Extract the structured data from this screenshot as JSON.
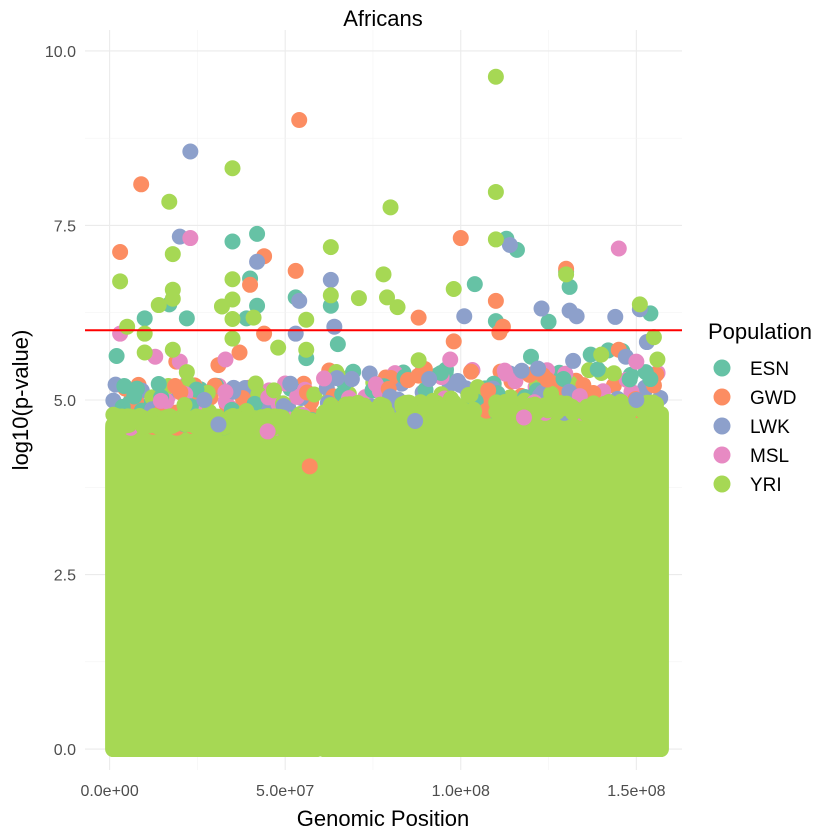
{
  "chart_data": {
    "type": "scatter",
    "title": "Africans",
    "xlabel": "Genomic Position",
    "ylabel": "log10(p-value)",
    "xlim": [
      -7000000,
      163000000
    ],
    "ylim": [
      -0.3,
      10.3
    ],
    "x_ticks": [
      0,
      50000000,
      100000000,
      150000000
    ],
    "x_tick_labels": [
      "0.0e+00",
      "5.0e+07",
      "1.0e+08",
      "1.5e+08"
    ],
    "y_ticks": [
      0,
      2.5,
      5,
      7.5,
      10
    ],
    "y_tick_labels": [
      "0.0",
      "2.5",
      "5.0",
      "7.5",
      "10.0"
    ],
    "grid": true,
    "threshold": {
      "y": 6,
      "color": "#ff0000"
    },
    "bulk_segments": [
      {
        "x_start": 1000000,
        "x_end": 59000000,
        "y_low": 0,
        "y_high": 4.6
      },
      {
        "x_start": 61000000,
        "x_end": 157000000,
        "y_low": 0,
        "y_high": 4.8
      }
    ],
    "legend": {
      "title": "Population",
      "position": "right",
      "entries": [
        "ESN",
        "GWD",
        "LWK",
        "MSL",
        "YRI"
      ]
    },
    "series": [
      {
        "name": "ESN",
        "color": "#66c2a5",
        "points": [
          {
            "x": 2000000,
            "y": 5.63
          },
          {
            "x": 4200000,
            "y": 5.2
          },
          {
            "x": 7000000,
            "y": 5.05
          },
          {
            "x": 10000000,
            "y": 6.17
          },
          {
            "x": 14000000,
            "y": 5.23
          },
          {
            "x": 17000000,
            "y": 6.37
          },
          {
            "x": 22000000,
            "y": 6.17
          },
          {
            "x": 35000000,
            "y": 7.27
          },
          {
            "x": 39000000,
            "y": 6.17
          },
          {
            "x": 40000000,
            "y": 6.74
          },
          {
            "x": 42000000,
            "y": 7.38
          },
          {
            "x": 42000000,
            "y": 6.35
          },
          {
            "x": 53000000,
            "y": 6.47
          },
          {
            "x": 56000000,
            "y": 5.6
          },
          {
            "x": 63000000,
            "y": 6.35
          },
          {
            "x": 65000000,
            "y": 5.8
          },
          {
            "x": 104000000,
            "y": 6.66
          },
          {
            "x": 110000000,
            "y": 6.13
          },
          {
            "x": 113000000,
            "y": 7.31
          },
          {
            "x": 116000000,
            "y": 7.15
          },
          {
            "x": 120000000,
            "y": 5.62
          },
          {
            "x": 125000000,
            "y": 6.12
          },
          {
            "x": 130000000,
            "y": 6.84
          },
          {
            "x": 131000000,
            "y": 6.62
          },
          {
            "x": 137000000,
            "y": 5.65
          },
          {
            "x": 142000000,
            "y": 5.71
          },
          {
            "x": 146000000,
            "y": 5.7
          },
          {
            "x": 154000000,
            "y": 6.24
          },
          {
            "x": 154000000,
            "y": 5.3
          }
        ]
      },
      {
        "name": "GWD",
        "color": "#fc8d62",
        "points": [
          {
            "x": 3000000,
            "y": 7.12
          },
          {
            "x": 9000000,
            "y": 8.09
          },
          {
            "x": 19000000,
            "y": 5.55
          },
          {
            "x": 31000000,
            "y": 5.5
          },
          {
            "x": 37000000,
            "y": 5.68
          },
          {
            "x": 40000000,
            "y": 6.65
          },
          {
            "x": 44000000,
            "y": 5.95
          },
          {
            "x": 44000000,
            "y": 7.06
          },
          {
            "x": 53000000,
            "y": 6.85
          },
          {
            "x": 54000000,
            "y": 9.01
          },
          {
            "x": 57000000,
            "y": 4.05
          },
          {
            "x": 88000000,
            "y": 6.18
          },
          {
            "x": 88000000,
            "y": 5.35
          },
          {
            "x": 98000000,
            "y": 5.84
          },
          {
            "x": 100000000,
            "y": 7.32
          },
          {
            "x": 110000000,
            "y": 6.42
          },
          {
            "x": 111000000,
            "y": 5.97
          },
          {
            "x": 112000000,
            "y": 6.05
          },
          {
            "x": 130000000,
            "y": 6.88
          },
          {
            "x": 145000000,
            "y": 5.72
          }
        ]
      },
      {
        "name": "LWK",
        "color": "#8da0cb",
        "points": [
          {
            "x": 20000000,
            "y": 7.34
          },
          {
            "x": 23000000,
            "y": 8.56
          },
          {
            "x": 27000000,
            "y": 5.0
          },
          {
            "x": 31000000,
            "y": 4.65
          },
          {
            "x": 42000000,
            "y": 6.98
          },
          {
            "x": 53000000,
            "y": 5.95
          },
          {
            "x": 54000000,
            "y": 6.42
          },
          {
            "x": 63000000,
            "y": 6.72
          },
          {
            "x": 64000000,
            "y": 6.05
          },
          {
            "x": 69000000,
            "y": 5.3
          },
          {
            "x": 87000000,
            "y": 4.7
          },
          {
            "x": 91000000,
            "y": 5.3
          },
          {
            "x": 101000000,
            "y": 6.2
          },
          {
            "x": 114000000,
            "y": 7.22
          },
          {
            "x": 122000000,
            "y": 5.45
          },
          {
            "x": 123000000,
            "y": 6.31
          },
          {
            "x": 131000000,
            "y": 6.28
          },
          {
            "x": 133000000,
            "y": 6.2
          },
          {
            "x": 132000000,
            "y": 5.56
          },
          {
            "x": 144000000,
            "y": 6.19
          },
          {
            "x": 147000000,
            "y": 5.62
          },
          {
            "x": 150000000,
            "y": 5.0
          },
          {
            "x": 151000000,
            "y": 6.3
          },
          {
            "x": 153000000,
            "y": 5.83
          }
        ]
      },
      {
        "name": "MSL",
        "color": "#e78ac3",
        "points": [
          {
            "x": 3000000,
            "y": 5.95
          },
          {
            "x": 13000000,
            "y": 5.62
          },
          {
            "x": 20000000,
            "y": 5.55
          },
          {
            "x": 23000000,
            "y": 7.32
          },
          {
            "x": 33000000,
            "y": 5.58
          },
          {
            "x": 45000000,
            "y": 4.55
          },
          {
            "x": 97000000,
            "y": 5.58
          },
          {
            "x": 118000000,
            "y": 4.75
          },
          {
            "x": 145000000,
            "y": 7.17
          },
          {
            "x": 150000000,
            "y": 5.55
          }
        ]
      },
      {
        "name": "YRI",
        "color": "#a6d854",
        "points": [
          {
            "x": 3000000,
            "y": 6.7
          },
          {
            "x": 5000000,
            "y": 6.05
          },
          {
            "x": 10000000,
            "y": 5.95
          },
          {
            "x": 10000000,
            "y": 5.68
          },
          {
            "x": 14000000,
            "y": 6.36
          },
          {
            "x": 17000000,
            "y": 7.84
          },
          {
            "x": 18000000,
            "y": 7.09
          },
          {
            "x": 18000000,
            "y": 6.58
          },
          {
            "x": 18000000,
            "y": 6.45
          },
          {
            "x": 18000000,
            "y": 5.72
          },
          {
            "x": 22000000,
            "y": 5.4
          },
          {
            "x": 32000000,
            "y": 6.34
          },
          {
            "x": 35000000,
            "y": 8.32
          },
          {
            "x": 35000000,
            "y": 6.73
          },
          {
            "x": 35000000,
            "y": 6.44
          },
          {
            "x": 35000000,
            "y": 6.16
          },
          {
            "x": 35000000,
            "y": 5.88
          },
          {
            "x": 41000000,
            "y": 6.18
          },
          {
            "x": 48000000,
            "y": 5.75
          },
          {
            "x": 56000000,
            "y": 6.15
          },
          {
            "x": 56000000,
            "y": 5.72
          },
          {
            "x": 63000000,
            "y": 7.19
          },
          {
            "x": 63000000,
            "y": 6.5
          },
          {
            "x": 71000000,
            "y": 6.46
          },
          {
            "x": 78000000,
            "y": 6.8
          },
          {
            "x": 79000000,
            "y": 6.47
          },
          {
            "x": 80000000,
            "y": 7.76
          },
          {
            "x": 82000000,
            "y": 6.33
          },
          {
            "x": 88000000,
            "y": 5.57
          },
          {
            "x": 98000000,
            "y": 6.59
          },
          {
            "x": 110000000,
            "y": 9.63
          },
          {
            "x": 110000000,
            "y": 7.98
          },
          {
            "x": 110000000,
            "y": 7.3
          },
          {
            "x": 130000000,
            "y": 6.8
          },
          {
            "x": 140000000,
            "y": 5.65
          },
          {
            "x": 151000000,
            "y": 6.37
          },
          {
            "x": 155000000,
            "y": 5.9
          },
          {
            "x": 156000000,
            "y": 5.58
          }
        ]
      }
    ]
  }
}
